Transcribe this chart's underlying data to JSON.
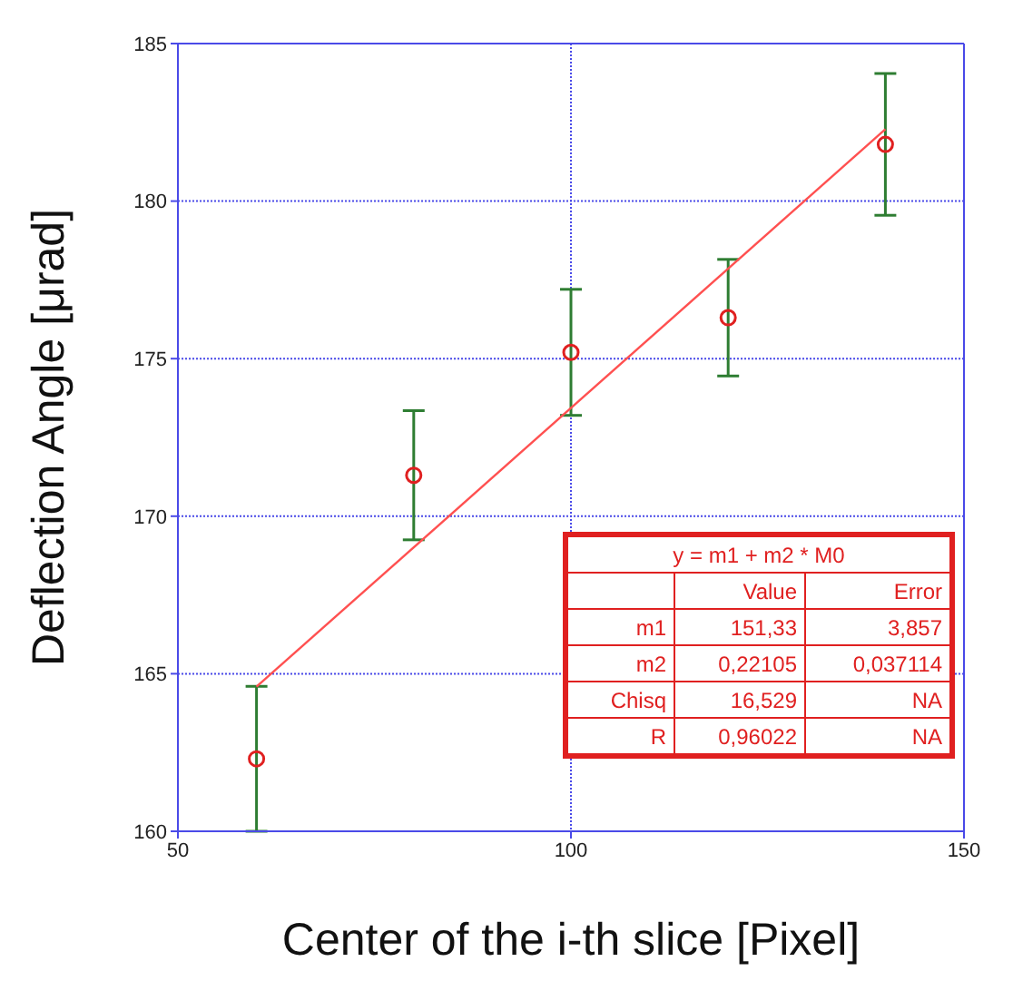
{
  "chart_data": {
    "type": "scatter",
    "xlabel": "Center of the i-th slice [Pixel]",
    "ylabel": "Deflection Angle [μrad]",
    "xlim": [
      50,
      150
    ],
    "xticks": [
      50,
      100,
      150
    ],
    "ylim": [
      160,
      185
    ],
    "yticks": [
      160,
      165,
      170,
      175,
      180,
      185
    ],
    "grid": true,
    "series": [
      {
        "color": "#e02020",
        "marker": "circle",
        "x": [
          60,
          80,
          100,
          120,
          140
        ],
        "values": [
          162.3,
          171.3,
          175.2,
          176.3,
          181.8
        ],
        "errors": [
          2.3,
          2.05,
          2.0,
          1.85,
          2.25
        ]
      },
      {
        "type": "line",
        "color": "#ff5050",
        "marker": "none",
        "x": [
          60,
          140
        ],
        "values": [
          164.59,
          182.28
        ]
      }
    ],
    "annotations": [
      "y = m1 + m2 * M0",
      "Value",
      "Error",
      "m1",
      "151,33",
      "3,857",
      "m2",
      "0,22105",
      "0,037114",
      "Chisq",
      "16,529",
      "NA",
      "R",
      "0,96022",
      "NA"
    ]
  }
}
